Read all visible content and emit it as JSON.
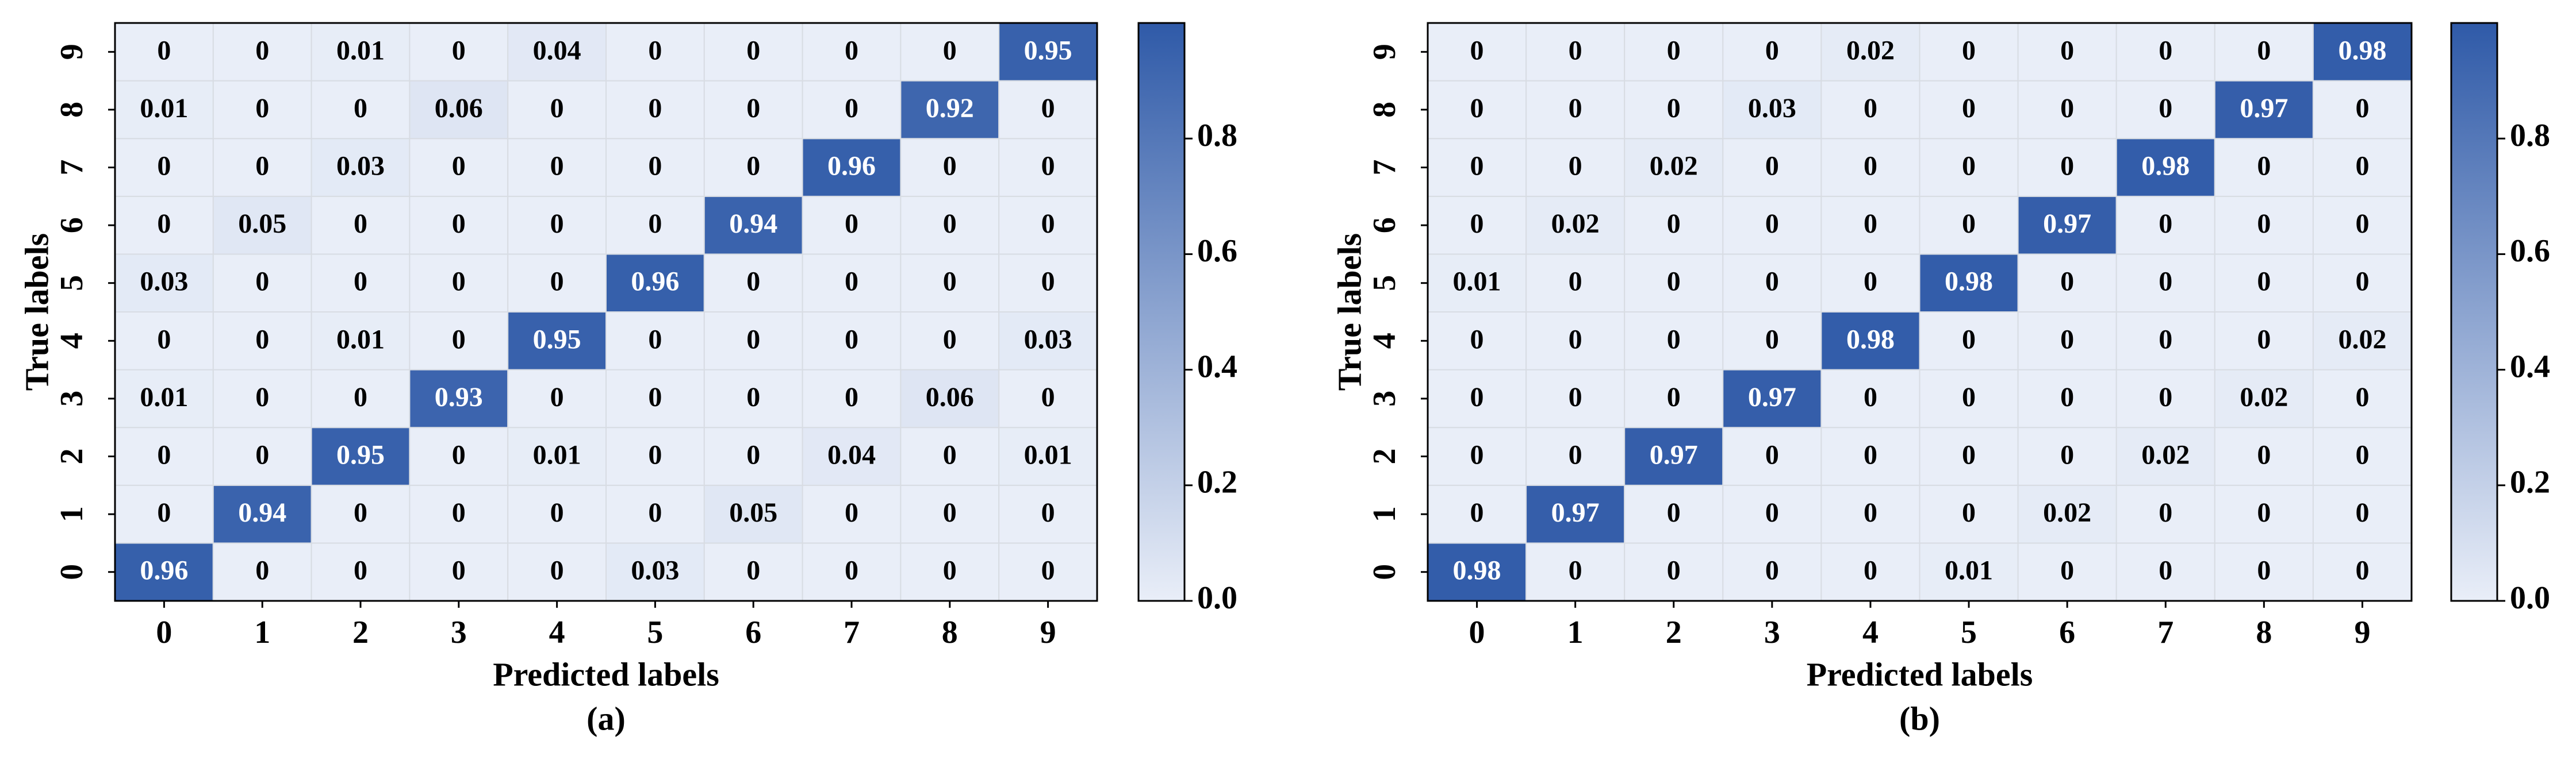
{
  "chart_data": [
    {
      "type": "heatmap",
      "label": "(a)",
      "xlabel": "Predicted labels",
      "ylabel": "True labels",
      "x": [
        "0",
        "1",
        "2",
        "3",
        "4",
        "5",
        "6",
        "7",
        "8",
        "9"
      ],
      "y": [
        "0",
        "1",
        "2",
        "3",
        "4",
        "5",
        "6",
        "7",
        "8",
        "9"
      ],
      "values": [
        [
          0.96,
          0,
          0,
          0,
          0,
          0.03,
          0,
          0,
          0,
          0
        ],
        [
          0,
          0.94,
          0,
          0,
          0,
          0,
          0.05,
          0,
          0,
          0
        ],
        [
          0,
          0,
          0.95,
          0,
          0.01,
          0,
          0,
          0.04,
          0,
          0.01
        ],
        [
          0.01,
          0,
          0,
          0.93,
          0,
          0,
          0,
          0,
          0.06,
          0
        ],
        [
          0,
          0,
          0.01,
          0,
          0.95,
          0,
          0,
          0,
          0,
          0.03
        ],
        [
          0.03,
          0,
          0,
          0,
          0,
          0.96,
          0,
          0,
          0,
          0
        ],
        [
          0,
          0.05,
          0,
          0,
          0,
          0,
          0.94,
          0,
          0,
          0
        ],
        [
          0,
          0,
          0.03,
          0,
          0,
          0,
          0,
          0.96,
          0,
          0
        ],
        [
          0.01,
          0,
          0,
          0.06,
          0,
          0,
          0,
          0,
          0.92,
          0
        ],
        [
          0,
          0,
          0.01,
          0,
          0.04,
          0,
          0,
          0,
          0,
          0.95
        ]
      ],
      "zlim": [
        0,
        1
      ],
      "cmap": [
        "#e9eef8",
        "#2f5aa8"
      ],
      "colorbar_ticks": [
        {
          "value": 0,
          "label": "0.0"
        },
        {
          "value": 0.2,
          "label": "0.2"
        },
        {
          "value": 0.4,
          "label": "0.4"
        },
        {
          "value": 0.6,
          "label": "0.6"
        },
        {
          "value": 0.8,
          "label": "0.8"
        }
      ]
    },
    {
      "type": "heatmap",
      "label": "(b)",
      "xlabel": "Predicted labels",
      "ylabel": "True labels",
      "x": [
        "0",
        "1",
        "2",
        "3",
        "4",
        "5",
        "6",
        "7",
        "8",
        "9"
      ],
      "y": [
        "0",
        "1",
        "2",
        "3",
        "4",
        "5",
        "6",
        "7",
        "8",
        "9"
      ],
      "values": [
        [
          0.98,
          0,
          0,
          0,
          0,
          0.01,
          0,
          0,
          0,
          0
        ],
        [
          0,
          0.97,
          0,
          0,
          0,
          0,
          0.02,
          0,
          0,
          0
        ],
        [
          0,
          0,
          0.97,
          0,
          0,
          0,
          0,
          0.02,
          0,
          0
        ],
        [
          0,
          0,
          0,
          0.97,
          0,
          0,
          0,
          0,
          0.02,
          0
        ],
        [
          0,
          0,
          0,
          0,
          0.98,
          0,
          0,
          0,
          0,
          0.02
        ],
        [
          0.01,
          0,
          0,
          0,
          0,
          0.98,
          0,
          0,
          0,
          0
        ],
        [
          0,
          0.02,
          0,
          0,
          0,
          0,
          0.97,
          0,
          0,
          0
        ],
        [
          0,
          0,
          0.02,
          0,
          0,
          0,
          0,
          0.98,
          0,
          0
        ],
        [
          0,
          0,
          0,
          0.03,
          0,
          0,
          0,
          0,
          0.97,
          0
        ],
        [
          0,
          0,
          0,
          0,
          0.02,
          0,
          0,
          0,
          0,
          0.98
        ]
      ],
      "zlim": [
        0,
        1
      ],
      "cmap": [
        "#e9eef8",
        "#2f5aa8"
      ],
      "colorbar_ticks": [
        {
          "value": 0,
          "label": "0.0"
        },
        {
          "value": 0.2,
          "label": "0.2"
        },
        {
          "value": 0.4,
          "label": "0.4"
        },
        {
          "value": 0.6,
          "label": "0.6"
        },
        {
          "value": 0.8,
          "label": "0.8"
        }
      ]
    }
  ]
}
